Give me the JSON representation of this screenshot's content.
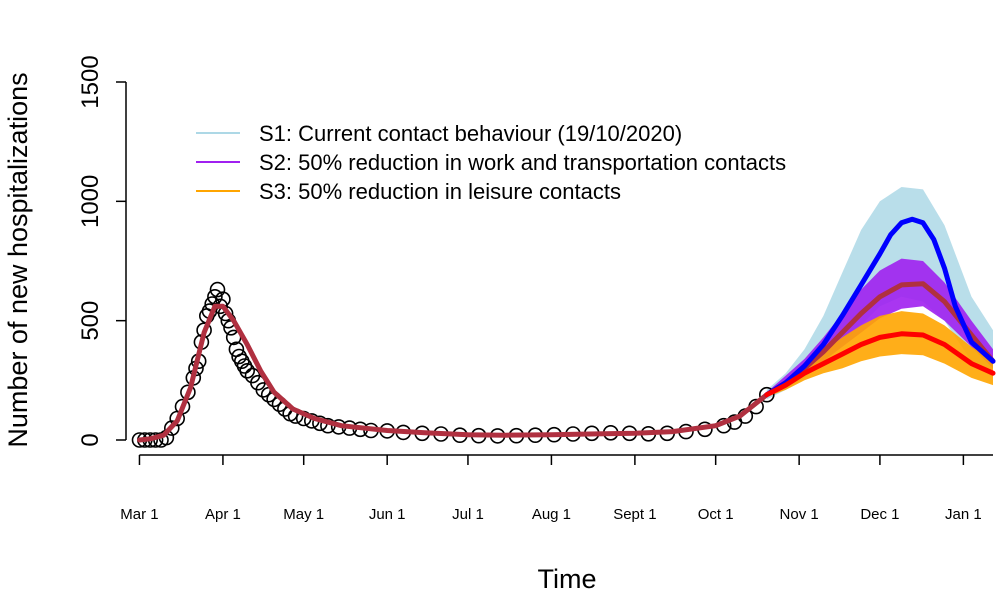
{
  "chart_data": {
    "type": "line",
    "xlabel": "Time",
    "ylabel": "Number of new hospitalizations",
    "ylim": [
      0,
      1500
    ],
    "y_ticks": [
      0,
      500,
      1000,
      1500
    ],
    "x_ticks": [
      {
        "date": "2020-03-01",
        "label": "Mar 1"
      },
      {
        "date": "2020-04-01",
        "label": "Apr 1"
      },
      {
        "date": "2020-05-01",
        "label": "May 1"
      },
      {
        "date": "2020-06-01",
        "label": "Jun 1"
      },
      {
        "date": "2020-07-01",
        "label": "Jul 1"
      },
      {
        "date": "2020-08-01",
        "label": "Aug 1"
      },
      {
        "date": "2020-09-01",
        "label": "Sept 1"
      },
      {
        "date": "2020-10-01",
        "label": "Oct 1"
      },
      {
        "date": "2020-11-01",
        "label": "Nov 1"
      },
      {
        "date": "2020-12-01",
        "label": "Dec 1"
      },
      {
        "date": "2021-01-01",
        "label": "Jan 1"
      }
    ],
    "xlim": [
      "2020-02-25",
      "2021-01-12"
    ],
    "legend": {
      "position": "top-left",
      "entries": [
        {
          "label": "S1: Current contact behaviour (19/10/2020)",
          "color": "#add8e6"
        },
        {
          "label": "S2: 50% reduction in work and transportation contacts",
          "color": "#a020f0"
        },
        {
          "label": "S3: 50% reduction in leisure contacts",
          "color": "#ffa500"
        }
      ]
    },
    "observed": {
      "marker": "open-circle",
      "color": "#000000",
      "points": [
        [
          "2020-03-01",
          0
        ],
        [
          "2020-03-03",
          0
        ],
        [
          "2020-03-05",
          0
        ],
        [
          "2020-03-07",
          0
        ],
        [
          "2020-03-09",
          0
        ],
        [
          "2020-03-11",
          10
        ],
        [
          "2020-03-13",
          50
        ],
        [
          "2020-03-15",
          90
        ],
        [
          "2020-03-17",
          140
        ],
        [
          "2020-03-19",
          200
        ],
        [
          "2020-03-21",
          260
        ],
        [
          "2020-03-22",
          300
        ],
        [
          "2020-03-23",
          330
        ],
        [
          "2020-03-24",
          410
        ],
        [
          "2020-03-25",
          460
        ],
        [
          "2020-03-26",
          520
        ],
        [
          "2020-03-27",
          540
        ],
        [
          "2020-03-28",
          570
        ],
        [
          "2020-03-29",
          600
        ],
        [
          "2020-03-30",
          630
        ],
        [
          "2020-03-31",
          560
        ],
        [
          "2020-04-01",
          590
        ],
        [
          "2020-04-02",
          530
        ],
        [
          "2020-04-03",
          500
        ],
        [
          "2020-04-04",
          470
        ],
        [
          "2020-04-05",
          430
        ],
        [
          "2020-04-06",
          380
        ],
        [
          "2020-04-07",
          350
        ],
        [
          "2020-04-08",
          330
        ],
        [
          "2020-04-09",
          310
        ],
        [
          "2020-04-10",
          290
        ],
        [
          "2020-04-12",
          270
        ],
        [
          "2020-04-14",
          240
        ],
        [
          "2020-04-16",
          210
        ],
        [
          "2020-04-18",
          190
        ],
        [
          "2020-04-20",
          170
        ],
        [
          "2020-04-22",
          150
        ],
        [
          "2020-04-24",
          130
        ],
        [
          "2020-04-26",
          110
        ],
        [
          "2020-04-28",
          100
        ],
        [
          "2020-05-01",
          90
        ],
        [
          "2020-05-04",
          80
        ],
        [
          "2020-05-07",
          70
        ],
        [
          "2020-05-10",
          60
        ],
        [
          "2020-05-14",
          55
        ],
        [
          "2020-05-18",
          50
        ],
        [
          "2020-05-22",
          45
        ],
        [
          "2020-05-26",
          40
        ],
        [
          "2020-06-01",
          38
        ],
        [
          "2020-06-07",
          32
        ],
        [
          "2020-06-14",
          28
        ],
        [
          "2020-06-21",
          25
        ],
        [
          "2020-06-28",
          20
        ],
        [
          "2020-07-05",
          18
        ],
        [
          "2020-07-12",
          17
        ],
        [
          "2020-07-19",
          18
        ],
        [
          "2020-07-26",
          20
        ],
        [
          "2020-08-02",
          22
        ],
        [
          "2020-08-09",
          25
        ],
        [
          "2020-08-16",
          28
        ],
        [
          "2020-08-23",
          30
        ],
        [
          "2020-08-30",
          28
        ],
        [
          "2020-09-06",
          26
        ],
        [
          "2020-09-13",
          28
        ],
        [
          "2020-09-20",
          35
        ],
        [
          "2020-09-27",
          45
        ],
        [
          "2020-10-04",
          60
        ],
        [
          "2020-10-08",
          75
        ],
        [
          "2020-10-12",
          100
        ],
        [
          "2020-10-16",
          140
        ],
        [
          "2020-10-20",
          190
        ]
      ]
    },
    "series": [
      {
        "name": "S1: Current contact behaviour (19/10/2020)",
        "color": "#0000ff",
        "band_color": "#add8e6",
        "points": [
          [
            "2020-10-20",
            190
          ],
          [
            "2020-10-27",
            240
          ],
          [
            "2020-11-03",
            310
          ],
          [
            "2020-11-10",
            400
          ],
          [
            "2020-11-17",
            520
          ],
          [
            "2020-11-24",
            650
          ],
          [
            "2020-12-01",
            780
          ],
          [
            "2020-12-05",
            860
          ],
          [
            "2020-12-09",
            910
          ],
          [
            "2020-12-13",
            925
          ],
          [
            "2020-12-17",
            910
          ],
          [
            "2020-12-21",
            840
          ],
          [
            "2020-12-25",
            720
          ],
          [
            "2020-12-29",
            560
          ],
          [
            "2021-01-04",
            410
          ],
          [
            "2021-01-12",
            330
          ]
        ],
        "band_upper": [
          [
            "2020-10-20",
            210
          ],
          [
            "2020-10-27",
            280
          ],
          [
            "2020-11-03",
            380
          ],
          [
            "2020-11-10",
            520
          ],
          [
            "2020-11-17",
            700
          ],
          [
            "2020-11-24",
            880
          ],
          [
            "2020-12-01",
            1000
          ],
          [
            "2020-12-09",
            1060
          ],
          [
            "2020-12-17",
            1050
          ],
          [
            "2020-12-25",
            900
          ],
          [
            "2021-01-04",
            600
          ],
          [
            "2021-01-12",
            460
          ]
        ],
        "band_lower": [
          [
            "2020-10-20",
            170
          ],
          [
            "2020-10-27",
            210
          ],
          [
            "2020-11-03",
            260
          ],
          [
            "2020-11-10",
            320
          ],
          [
            "2020-11-17",
            400
          ],
          [
            "2020-11-24",
            480
          ],
          [
            "2020-12-01",
            560
          ],
          [
            "2020-12-09",
            600
          ],
          [
            "2020-12-17",
            580
          ],
          [
            "2020-12-25",
            500
          ],
          [
            "2021-01-04",
            330
          ],
          [
            "2021-01-12",
            260
          ]
        ]
      },
      {
        "name": "S2: 50% reduction in work and transportation contacts",
        "color": "#b03040",
        "band_color": "#a020f0",
        "points": [
          [
            "2020-03-01",
            0
          ],
          [
            "2020-03-05",
            5
          ],
          [
            "2020-03-10",
            20
          ],
          [
            "2020-03-15",
            80
          ],
          [
            "2020-03-20",
            220
          ],
          [
            "2020-03-25",
            450
          ],
          [
            "2020-03-29",
            560
          ],
          [
            "2020-04-01",
            560
          ],
          [
            "2020-04-05",
            500
          ],
          [
            "2020-04-10",
            400
          ],
          [
            "2020-04-15",
            290
          ],
          [
            "2020-04-20",
            200
          ],
          [
            "2020-04-27",
            130
          ],
          [
            "2020-05-05",
            90
          ],
          [
            "2020-05-15",
            60
          ],
          [
            "2020-06-01",
            40
          ],
          [
            "2020-06-15",
            30
          ],
          [
            "2020-07-01",
            22
          ],
          [
            "2020-07-15",
            20
          ],
          [
            "2020-08-01",
            22
          ],
          [
            "2020-08-15",
            25
          ],
          [
            "2020-09-01",
            28
          ],
          [
            "2020-09-15",
            35
          ],
          [
            "2020-10-01",
            60
          ],
          [
            "2020-10-10",
            100
          ],
          [
            "2020-10-20",
            190
          ],
          [
            "2020-10-27",
            240
          ],
          [
            "2020-11-03",
            300
          ],
          [
            "2020-11-10",
            370
          ],
          [
            "2020-11-17",
            450
          ],
          [
            "2020-11-24",
            530
          ],
          [
            "2020-12-01",
            600
          ],
          [
            "2020-12-09",
            650
          ],
          [
            "2020-12-17",
            655
          ],
          [
            "2020-12-25",
            580
          ],
          [
            "2021-01-04",
            440
          ],
          [
            "2021-01-12",
            330
          ]
        ],
        "band_upper": [
          [
            "2020-10-20",
            200
          ],
          [
            "2020-10-27",
            270
          ],
          [
            "2020-11-03",
            340
          ],
          [
            "2020-11-10",
            430
          ],
          [
            "2020-11-17",
            530
          ],
          [
            "2020-11-24",
            630
          ],
          [
            "2020-12-01",
            710
          ],
          [
            "2020-12-09",
            760
          ],
          [
            "2020-12-17",
            750
          ],
          [
            "2020-12-25",
            660
          ],
          [
            "2021-01-04",
            500
          ],
          [
            "2021-01-12",
            380
          ]
        ],
        "band_lower": [
          [
            "2020-10-20",
            180
          ],
          [
            "2020-10-27",
            220
          ],
          [
            "2020-11-03",
            270
          ],
          [
            "2020-11-10",
            330
          ],
          [
            "2020-11-17",
            390
          ],
          [
            "2020-11-24",
            450
          ],
          [
            "2020-12-01",
            510
          ],
          [
            "2020-12-09",
            550
          ],
          [
            "2020-12-17",
            560
          ],
          [
            "2020-12-25",
            500
          ],
          [
            "2021-01-04",
            390
          ],
          [
            "2021-01-12",
            300
          ]
        ]
      },
      {
        "name": "S3: 50% reduction in leisure contacts",
        "color": "#ff0000",
        "band_color": "#ffa500",
        "points": [
          [
            "2020-10-20",
            190
          ],
          [
            "2020-10-27",
            230
          ],
          [
            "2020-11-03",
            280
          ],
          [
            "2020-11-10",
            320
          ],
          [
            "2020-11-17",
            360
          ],
          [
            "2020-11-24",
            400
          ],
          [
            "2020-12-01",
            430
          ],
          [
            "2020-12-09",
            445
          ],
          [
            "2020-12-17",
            440
          ],
          [
            "2020-12-25",
            400
          ],
          [
            "2021-01-04",
            320
          ],
          [
            "2021-01-12",
            280
          ]
        ],
        "band_upper": [
          [
            "2020-10-20",
            200
          ],
          [
            "2020-10-27",
            250
          ],
          [
            "2020-11-03",
            310
          ],
          [
            "2020-11-10",
            370
          ],
          [
            "2020-11-17",
            430
          ],
          [
            "2020-11-24",
            480
          ],
          [
            "2020-12-01",
            520
          ],
          [
            "2020-12-09",
            540
          ],
          [
            "2020-12-17",
            530
          ],
          [
            "2020-12-25",
            480
          ],
          [
            "2021-01-04",
            390
          ],
          [
            "2021-01-12",
            340
          ]
        ],
        "band_lower": [
          [
            "2020-10-20",
            180
          ],
          [
            "2020-10-27",
            210
          ],
          [
            "2020-11-03",
            250
          ],
          [
            "2020-11-10",
            280
          ],
          [
            "2020-11-17",
            300
          ],
          [
            "2020-11-24",
            330
          ],
          [
            "2020-12-01",
            350
          ],
          [
            "2020-12-09",
            360
          ],
          [
            "2020-12-17",
            355
          ],
          [
            "2020-12-25",
            320
          ],
          [
            "2021-01-04",
            260
          ],
          [
            "2021-01-12",
            230
          ]
        ]
      }
    ]
  }
}
